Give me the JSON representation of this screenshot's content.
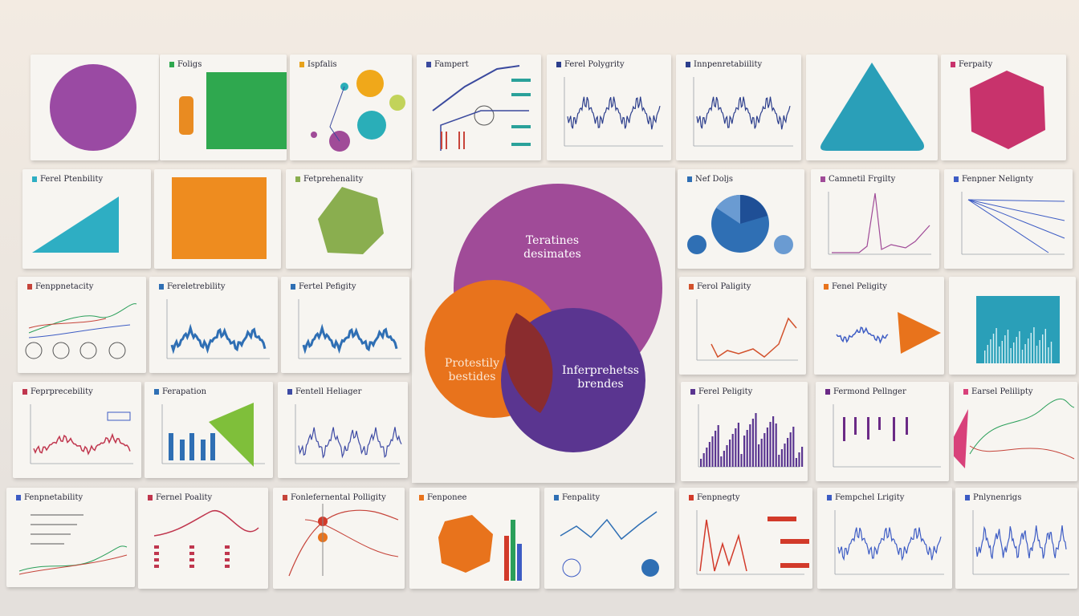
{
  "venn": {
    "top_label": "Teratines desimates",
    "left_label": "Protestily bestides",
    "right_label": "Inferprehetss brendes",
    "colors": {
      "top": "#a04b98",
      "left": "#e8731c",
      "right": "#5a3590",
      "overlap": "#8a2c2e"
    }
  },
  "cards": [
    {
      "title": "",
      "kind": "circle-shape",
      "accent": "#9a4aa3"
    },
    {
      "title": "Foligs",
      "kind": "cube-vial",
      "accent": "#2fa84f"
    },
    {
      "title": "Ispfalis",
      "kind": "dots",
      "accent": "#e7a21c"
    },
    {
      "title": "Fampert",
      "kind": "flow",
      "accent": "#3b4a9e"
    },
    {
      "title": "Ferel Polygrity",
      "kind": "wave",
      "accent": "#2c3e8c"
    },
    {
      "title": "Innpenretabiility",
      "kind": "wave2",
      "accent": "#2c3e8c"
    },
    {
      "title": "",
      "kind": "triangle-shape",
      "accent": "#2a9fb8"
    },
    {
      "title": "Ferpaity",
      "kind": "hex-shape",
      "accent": "#c8336c"
    },
    {
      "title": "Ferel Ptenbility",
      "kind": "wedge-shape",
      "accent": "#2eaec3"
    },
    {
      "title": "",
      "kind": "square-shape",
      "accent": "#ee8c1f"
    },
    {
      "title": "Fetprehenality",
      "kind": "hex-green",
      "accent": "#8aae4f"
    },
    {
      "title": "Nef Doljs",
      "kind": "pie",
      "accent": "#2f6fb4"
    },
    {
      "title": "Camnetil Frgilty",
      "kind": "spike",
      "accent": "#a04b98"
    },
    {
      "title": "Fenpner Nelignty",
      "kind": "lines-fan",
      "accent": "#3d5cc4"
    },
    {
      "title": "Fenppnetacity",
      "kind": "lines-multi",
      "accent": "#c6443a"
    },
    {
      "title": "Fereletrebility",
      "kind": "bars-wave",
      "accent": "#2f6fb4"
    },
    {
      "title": "Fertel Pefigity",
      "kind": "bars-wave",
      "accent": "#2f6fb4"
    },
    {
      "title": "Ferol Paligity",
      "kind": "red-wave",
      "accent": "#d2512c"
    },
    {
      "title": "Fenel Peligity",
      "kind": "wave-tri",
      "accent": "#e8731c"
    },
    {
      "title": "",
      "kind": "teal-box",
      "accent": "#2a9fb8"
    },
    {
      "title": "Feprprecebility",
      "kind": "red-line",
      "accent": "#c0364e"
    },
    {
      "title": "Ferapation",
      "kind": "bars-green",
      "accent": "#2f6fb4"
    },
    {
      "title": "Fentell Heliager",
      "kind": "noisy",
      "accent": "#3d4aa4"
    },
    {
      "title": "Ferel Peligity",
      "kind": "histogram",
      "accent": "#5a3590"
    },
    {
      "title": "Fermond Pellnger",
      "kind": "sticks",
      "accent": "#6b2a86"
    },
    {
      "title": "Earsel Pelilipty",
      "kind": "multi-tri",
      "accent": "#d8417a"
    },
    {
      "title": "Fenpnetability",
      "kind": "legend-lines",
      "accent": "#3d5cc4"
    },
    {
      "title": "Fernel Poality",
      "kind": "peak-legend",
      "accent": "#c0364e"
    },
    {
      "title": "Fonlefernental Polligity",
      "kind": "scatter-curve",
      "accent": "#c6443a"
    },
    {
      "title": "Fenponee",
      "kind": "polyhedron",
      "accent": "#e8731c"
    },
    {
      "title": "Fenpality",
      "kind": "zigzag",
      "accent": "#2f6fb4"
    },
    {
      "title": "Fenpnegty",
      "kind": "red-peaks",
      "accent": "#d23a2a"
    },
    {
      "title": "Fempchel Lrigity",
      "kind": "wave-blue",
      "accent": "#3d5cc4"
    },
    {
      "title": "Pnlynenrigs",
      "kind": "wave-dense",
      "accent": "#3d5cc4"
    }
  ]
}
